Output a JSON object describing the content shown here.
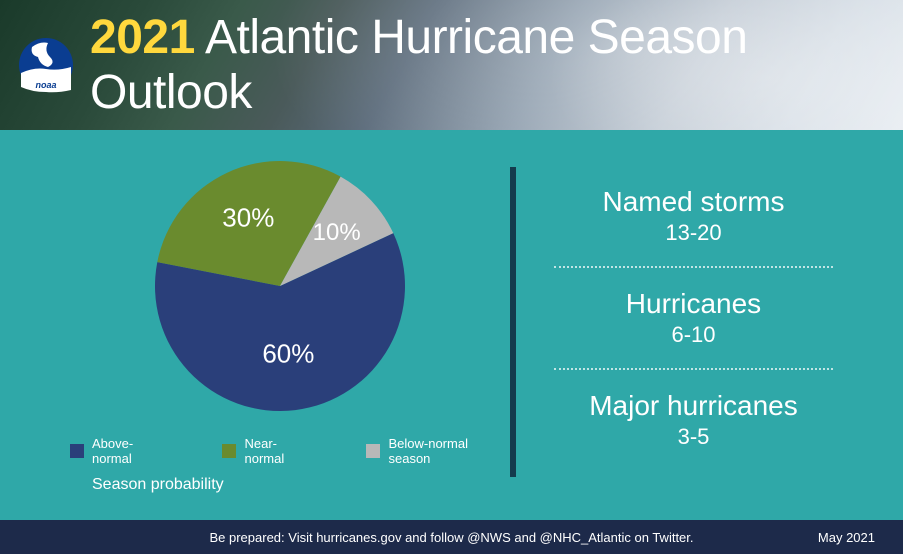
{
  "colors": {
    "main_bg": "#2fa8a8",
    "footer_bg": "#1d2a4a",
    "divider": "#143b4d"
  },
  "header": {
    "year": "2021",
    "rest": " Atlantic Hurricane Season Outlook",
    "logo_text": "noaa"
  },
  "chart": {
    "type": "pie",
    "title": "Season probability",
    "radius": 125,
    "start_angle_deg": -25,
    "slices": [
      {
        "name": "Above-normal",
        "value": 60,
        "color": "#2a3f7a",
        "label": "60%",
        "label_color": "#ffffff",
        "label_r": 0.55,
        "label_fontsize": 26
      },
      {
        "name": "Near-normal",
        "value": 30,
        "color": "#6a8b2e",
        "label": "30%",
        "label_color": "#ffffff",
        "label_r": 0.6,
        "label_fontsize": 26
      },
      {
        "name": "Below-normal season",
        "value": 10,
        "color": "#b8b8b8",
        "label": "10%",
        "label_color": "#ffffff",
        "label_r": 0.62,
        "label_fontsize": 24
      }
    ],
    "legend_fontsize": 13,
    "title_fontsize": 16
  },
  "stats": [
    {
      "label": "Named storms",
      "value": "13-20"
    },
    {
      "label": "Hurricanes",
      "value": "6-10"
    },
    {
      "label": "Major hurricanes",
      "value": "3-5"
    }
  ],
  "footer": {
    "text": "Be prepared: Visit hurricanes.gov and follow @NWS and @NHC_Atlantic on Twitter.",
    "date": "May 2021"
  }
}
